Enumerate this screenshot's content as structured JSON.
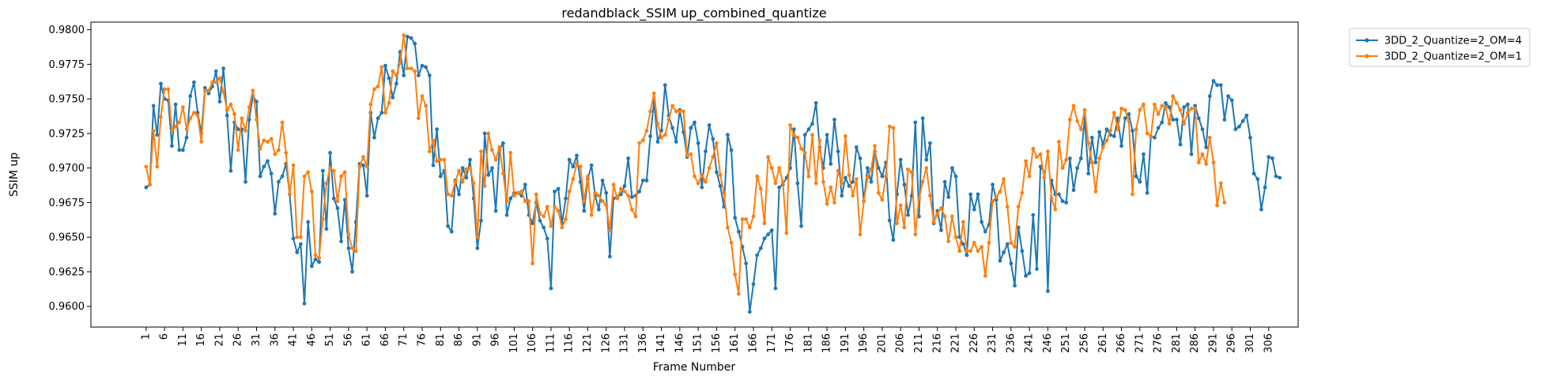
{
  "chart_data": {
    "type": "line",
    "title": "redandblack_SSIM up_combined_quantize",
    "xlabel": "Frame Number",
    "ylabel": "SSIM up",
    "x_start": 1,
    "x_tick_step": 5,
    "xlim": [
      -14,
      314
    ],
    "ylim": [
      0.9585,
      0.98055
    ],
    "y_ticks": [
      0.96,
      0.9625,
      0.965,
      0.9675,
      0.97,
      0.9725,
      0.975,
      0.9775,
      0.98
    ],
    "y_tick_labels": [
      "0.9600",
      "0.9625",
      "0.9650",
      "0.9675",
      "0.9700",
      "0.9725",
      "0.9750",
      "0.9775",
      "0.9800"
    ],
    "legend_position": "outside-top-right",
    "grid": false,
    "series": [
      {
        "name": "3DD_2_Quantize=2_OM=4",
        "color": "#1f77b4",
        "values": [
          0.9686,
          0.9688,
          0.9745,
          0.9724,
          0.9761,
          0.975,
          0.9749,
          0.9716,
          0.9746,
          0.9713,
          0.9713,
          0.9722,
          0.9752,
          0.9762,
          0.974,
          0.9725,
          0.9758,
          0.9754,
          0.9759,
          0.977,
          0.9748,
          0.9772,
          0.9738,
          0.9698,
          0.9733,
          0.9728,
          0.9728,
          0.969,
          0.9735,
          0.9752,
          0.9748,
          0.9694,
          0.9701,
          0.9705,
          0.9696,
          0.9667,
          0.969,
          0.9694,
          0.9703,
          0.9681,
          0.9649,
          0.9639,
          0.9645,
          0.9602,
          0.9661,
          0.9629,
          0.9634,
          0.9632,
          0.9698,
          0.9656,
          0.9711,
          0.9678,
          0.9671,
          0.9647,
          0.9677,
          0.9642,
          0.9625,
          0.9661,
          0.9703,
          0.9702,
          0.968,
          0.974,
          0.9722,
          0.9736,
          0.974,
          0.9774,
          0.9765,
          0.9751,
          0.9761,
          0.9784,
          0.9767,
          0.9795,
          0.9794,
          0.979,
          0.9767,
          0.9774,
          0.9773,
          0.9767,
          0.9702,
          0.9728,
          0.9694,
          0.9698,
          0.9658,
          0.9654,
          0.9691,
          0.9681,
          0.97,
          0.9693,
          0.9706,
          0.9678,
          0.9642,
          0.9662,
          0.9725,
          0.9695,
          0.97,
          0.9669,
          0.9713,
          0.9718,
          0.9666,
          0.9678,
          0.9682,
          0.9682,
          0.968,
          0.9688,
          0.9666,
          0.966,
          0.9675,
          0.9662,
          0.9657,
          0.9649,
          0.9613,
          0.9683,
          0.9685,
          0.966,
          0.9678,
          0.9706,
          0.9701,
          0.9709,
          0.969,
          0.9669,
          0.9692,
          0.9702,
          0.968,
          0.967,
          0.9691,
          0.9682,
          0.9636,
          0.9678,
          0.9679,
          0.9681,
          0.9687,
          0.9707,
          0.9679,
          0.968,
          0.9683,
          0.9691,
          0.9691,
          0.9723,
          0.9748,
          0.9719,
          0.9727,
          0.976,
          0.9738,
          0.9729,
          0.9719,
          0.9742,
          0.9726,
          0.9708,
          0.9729,
          0.9733,
          0.9718,
          0.9686,
          0.9712,
          0.9731,
          0.9721,
          0.9697,
          0.9687,
          0.9672,
          0.9724,
          0.9713,
          0.9664,
          0.9654,
          0.9643,
          0.9631,
          0.9596,
          0.9616,
          0.9637,
          0.9642,
          0.9649,
          0.9652,
          0.9655,
          0.9613,
          0.9686,
          0.9688,
          0.9693,
          0.97,
          0.9728,
          0.9689,
          0.9658,
          0.9724,
          0.9728,
          0.9732,
          0.9747,
          0.9715,
          0.97,
          0.9724,
          0.9703,
          0.9735,
          0.9712,
          0.968,
          0.9693,
          0.9687,
          0.969,
          0.9715,
          0.9707,
          0.9676,
          0.97,
          0.969,
          0.9712,
          0.97,
          0.9694,
          0.9704,
          0.9662,
          0.9648,
          0.9681,
          0.9706,
          0.9688,
          0.9666,
          0.968,
          0.9733,
          0.9665,
          0.9736,
          0.9706,
          0.9718,
          0.966,
          0.9669,
          0.9655,
          0.969,
          0.9679,
          0.97,
          0.9694,
          0.965,
          0.9645,
          0.9637,
          0.9681,
          0.967,
          0.9681,
          0.9661,
          0.9654,
          0.9659,
          0.9688,
          0.9677,
          0.9633,
          0.9639,
          0.9645,
          0.9631,
          0.9615,
          0.9657,
          0.964,
          0.9622,
          0.9624,
          0.9666,
          0.9627,
          0.9701,
          0.9697,
          0.9611,
          0.9691,
          0.9681,
          0.9681,
          0.9676,
          0.9675,
          0.9707,
          0.9684,
          0.97,
          0.9707,
          0.9736,
          0.9696,
          0.9722,
          0.9704,
          0.9726,
          0.9717,
          0.9728,
          0.9724,
          0.9723,
          0.9736,
          0.9716,
          0.9736,
          0.9739,
          0.9727,
          0.9694,
          0.969,
          0.971,
          0.9682,
          0.9723,
          0.9722,
          0.9729,
          0.9733,
          0.9747,
          0.9744,
          0.9735,
          0.9735,
          0.9717,
          0.9744,
          0.9746,
          0.971,
          0.9745,
          0.9736,
          0.9728,
          0.9715,
          0.9752,
          0.9763,
          0.976,
          0.976,
          0.9735,
          0.9752,
          0.9749,
          0.9728,
          0.973,
          0.9734,
          0.9738,
          0.9722,
          0.9696,
          0.9692,
          0.967,
          0.9686,
          0.9708,
          0.9707,
          0.9694,
          0.9693
        ]
      },
      {
        "name": "3DD_2_Quantize=2_OM=1",
        "color": "#ff7f0e",
        "values": [
          0.9701,
          0.9688,
          0.9727,
          0.9701,
          0.9737,
          0.9757,
          0.9757,
          0.9727,
          0.973,
          0.9733,
          0.9744,
          0.9728,
          0.9736,
          0.974,
          0.9738,
          0.9719,
          0.9756,
          0.9756,
          0.9762,
          0.9762,
          0.9765,
          0.9755,
          0.9742,
          0.9746,
          0.9739,
          0.9713,
          0.9736,
          0.9727,
          0.9744,
          0.9756,
          0.9735,
          0.9714,
          0.972,
          0.9719,
          0.9721,
          0.971,
          0.9713,
          0.9733,
          0.9711,
          0.9681,
          0.9702,
          0.965,
          0.965,
          0.9694,
          0.9697,
          0.9683,
          0.9637,
          0.9635,
          0.9663,
          0.9689,
          0.97,
          0.9698,
          0.9676,
          0.9694,
          0.9697,
          0.9652,
          0.9642,
          0.964,
          0.9701,
          0.9708,
          0.9701,
          0.9746,
          0.9757,
          0.9759,
          0.9773,
          0.974,
          0.9747,
          0.977,
          0.9767,
          0.9776,
          0.9796,
          0.9772,
          0.9772,
          0.977,
          0.9736,
          0.9752,
          0.9745,
          0.9712,
          0.972,
          0.9705,
          0.9706,
          0.9706,
          0.9681,
          0.968,
          0.969,
          0.9698,
          0.969,
          0.9699,
          0.97,
          0.9689,
          0.965,
          0.9712,
          0.9687,
          0.9725,
          0.9713,
          0.9706,
          0.9715,
          0.9696,
          0.9676,
          0.9711,
          0.968,
          0.9682,
          0.9683,
          0.9676,
          0.9676,
          0.9631,
          0.9681,
          0.9667,
          0.9665,
          0.9672,
          0.9658,
          0.9672,
          0.9669,
          0.9657,
          0.9663,
          0.9683,
          0.9692,
          0.9703,
          0.9701,
          0.9676,
          0.9694,
          0.9666,
          0.9682,
          0.968,
          0.9676,
          0.9673,
          0.9655,
          0.9688,
          0.9678,
          0.9685,
          0.9683,
          0.968,
          0.967,
          0.9665,
          0.9718,
          0.972,
          0.9727,
          0.9741,
          0.9754,
          0.9732,
          0.9722,
          0.9724,
          0.9735,
          0.9745,
          0.9741,
          0.9741,
          0.9741,
          0.9709,
          0.971,
          0.9694,
          0.9689,
          0.9695,
          0.969,
          0.97,
          0.9708,
          0.9718,
          0.9695,
          0.9682,
          0.9657,
          0.9646,
          0.9623,
          0.9609,
          0.9663,
          0.9663,
          0.9657,
          0.9665,
          0.9694,
          0.9685,
          0.966,
          0.9708,
          0.97,
          0.9689,
          0.97,
          0.969,
          0.9653,
          0.9731,
          0.9724,
          0.9722,
          0.9714,
          0.9711,
          0.9694,
          0.9724,
          0.9689,
          0.972,
          0.969,
          0.9674,
          0.9686,
          0.9675,
          0.9698,
          0.9689,
          0.9723,
          0.9695,
          0.968,
          0.9692,
          0.9652,
          0.9676,
          0.9693,
          0.9699,
          0.9716,
          0.9682,
          0.9677,
          0.9694,
          0.973,
          0.9729,
          0.966,
          0.9673,
          0.9657,
          0.9699,
          0.9697,
          0.9652,
          0.9678,
          0.969,
          0.97,
          0.968,
          0.9661,
          0.9667,
          0.9671,
          0.9665,
          0.9647,
          0.9665,
          0.965,
          0.964,
          0.9661,
          0.964,
          0.964,
          0.9646,
          0.964,
          0.9643,
          0.9622,
          0.9646,
          0.9676,
          0.9679,
          0.9683,
          0.9692,
          0.9672,
          0.9646,
          0.9643,
          0.9672,
          0.9682,
          0.9705,
          0.9694,
          0.9714,
          0.9708,
          0.971,
          0.9693,
          0.9712,
          0.9678,
          0.967,
          0.9719,
          0.97,
          0.9706,
          0.9735,
          0.9745,
          0.9734,
          0.9728,
          0.9742,
          0.9718,
          0.9704,
          0.9683,
          0.9707,
          0.9715,
          0.972,
          0.9727,
          0.974,
          0.9728,
          0.9743,
          0.9742,
          0.9734,
          0.9681,
          0.9728,
          0.9742,
          0.9746,
          0.9725,
          0.9723,
          0.9746,
          0.9739,
          0.9745,
          0.9744,
          0.9732,
          0.9752,
          0.9747,
          0.9742,
          0.9732,
          0.974,
          0.9743,
          0.9743,
          0.9704,
          0.971,
          0.9703,
          0.9722,
          0.9704,
          0.9673,
          0.9689,
          0.9675
        ]
      }
    ]
  }
}
